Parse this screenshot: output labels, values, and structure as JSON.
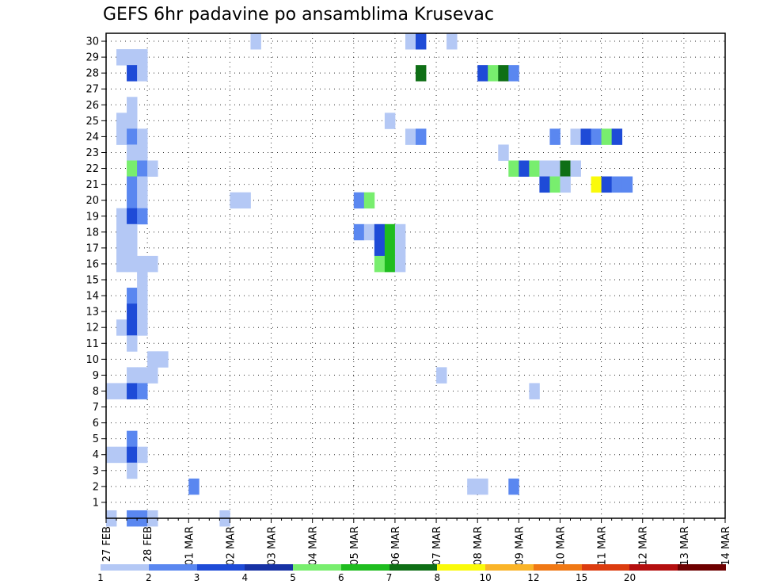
{
  "title": "GEFS 6hr padavine po ansamblima Krusevac",
  "chart_data": {
    "type": "heatmap",
    "title": "GEFS 6hr padavine po ansamblima Krusevac",
    "x_tick_labels": [
      "27 FEB",
      "28 FEB",
      "01 MAR",
      "02 MAR",
      "03 MAR",
      "04 MAR",
      "05 MAR",
      "06 MAR",
      "07 MAR",
      "08 MAR",
      "09 MAR",
      "10 MAR",
      "11 MAR",
      "12 MAR",
      "13 MAR",
      "14 MAR"
    ],
    "y_tick_labels": [
      "1",
      "2",
      "3",
      "4",
      "5",
      "6",
      "7",
      "8",
      "9",
      "10",
      "11",
      "12",
      "13",
      "14",
      "15",
      "16",
      "17",
      "18",
      "19",
      "20",
      "21",
      "22",
      "23",
      "24",
      "25",
      "26",
      "27",
      "28",
      "29",
      "30"
    ],
    "x_steps_per_day": 4,
    "grid": "dotted",
    "legend": {
      "position": "bottom",
      "levels": [
        "1",
        "2",
        "3",
        "4",
        "5",
        "6",
        "7",
        "8",
        "10",
        "12",
        "15",
        "20"
      ],
      "colors": [
        "#b4c8f5",
        "#5a87f0",
        "#1e4bd7",
        "#1732a5",
        "#78ee6e",
        "#1fbd1f",
        "#0f6f16",
        "#fafa0a",
        "#fab428",
        "#f07814",
        "#dc3c0f",
        "#b40f0f",
        "#6e0000"
      ]
    },
    "cells_columns": [
      "member",
      "step",
      "class"
    ],
    "cells": [
      [
        30,
        14,
        1
      ],
      [
        30,
        29,
        1
      ],
      [
        30,
        30,
        3
      ],
      [
        30,
        33,
        1
      ],
      [
        29,
        1,
        1
      ],
      [
        29,
        2,
        1
      ],
      [
        29,
        3,
        1
      ],
      [
        28,
        2,
        3
      ],
      [
        28,
        3,
        1
      ],
      [
        28,
        30,
        7
      ],
      [
        28,
        36,
        3
      ],
      [
        28,
        37,
        5
      ],
      [
        28,
        38,
        7
      ],
      [
        28,
        39,
        2
      ],
      [
        26,
        2,
        1
      ],
      [
        25,
        1,
        1
      ],
      [
        25,
        2,
        1
      ],
      [
        25,
        27,
        1
      ],
      [
        24,
        1,
        1
      ],
      [
        24,
        2,
        2
      ],
      [
        24,
        3,
        1
      ],
      [
        24,
        29,
        1
      ],
      [
        24,
        30,
        2
      ],
      [
        24,
        43,
        2
      ],
      [
        24,
        45,
        1
      ],
      [
        24,
        46,
        3
      ],
      [
        24,
        47,
        2
      ],
      [
        24,
        48,
        5
      ],
      [
        24,
        49,
        3
      ],
      [
        23,
        2,
        1
      ],
      [
        23,
        3,
        1
      ],
      [
        23,
        38,
        1
      ],
      [
        22,
        2,
        5
      ],
      [
        22,
        3,
        2
      ],
      [
        22,
        4,
        1
      ],
      [
        22,
        39,
        5
      ],
      [
        22,
        40,
        3
      ],
      [
        22,
        41,
        5
      ],
      [
        22,
        42,
        1
      ],
      [
        22,
        43,
        1
      ],
      [
        22,
        44,
        7
      ],
      [
        22,
        45,
        1
      ],
      [
        21,
        2,
        2
      ],
      [
        21,
        3,
        1
      ],
      [
        21,
        42,
        3
      ],
      [
        21,
        43,
        5
      ],
      [
        21,
        44,
        1
      ],
      [
        21,
        47,
        8
      ],
      [
        21,
        48,
        3
      ],
      [
        21,
        49,
        2
      ],
      [
        21,
        50,
        2
      ],
      [
        20,
        2,
        2
      ],
      [
        20,
        3,
        1
      ],
      [
        20,
        12,
        1
      ],
      [
        20,
        13,
        1
      ],
      [
        20,
        24,
        2
      ],
      [
        20,
        25,
        5
      ],
      [
        19,
        1,
        1
      ],
      [
        19,
        2,
        3
      ],
      [
        19,
        3,
        2
      ],
      [
        18,
        1,
        1
      ],
      [
        18,
        2,
        1
      ],
      [
        18,
        24,
        2
      ],
      [
        18,
        25,
        1
      ],
      [
        18,
        26,
        3
      ],
      [
        18,
        27,
        6
      ],
      [
        18,
        28,
        1
      ],
      [
        17,
        1,
        1
      ],
      [
        17,
        2,
        1
      ],
      [
        17,
        26,
        3
      ],
      [
        17,
        27,
        6
      ],
      [
        17,
        28,
        1
      ],
      [
        16,
        1,
        1
      ],
      [
        16,
        2,
        1
      ],
      [
        16,
        3,
        1
      ],
      [
        16,
        4,
        1
      ],
      [
        16,
        26,
        5
      ],
      [
        16,
        27,
        6
      ],
      [
        16,
        28,
        1
      ],
      [
        15,
        3,
        1
      ],
      [
        14,
        2,
        2
      ],
      [
        14,
        3,
        1
      ],
      [
        13,
        2,
        3
      ],
      [
        13,
        3,
        1
      ],
      [
        12,
        1,
        1
      ],
      [
        12,
        2,
        3
      ],
      [
        12,
        3,
        1
      ],
      [
        11,
        2,
        1
      ],
      [
        10,
        4,
        1
      ],
      [
        10,
        5,
        1
      ],
      [
        9,
        2,
        1
      ],
      [
        9,
        3,
        1
      ],
      [
        9,
        4,
        1
      ],
      [
        9,
        32,
        1
      ],
      [
        8,
        0,
        1
      ],
      [
        8,
        1,
        1
      ],
      [
        8,
        2,
        3
      ],
      [
        8,
        3,
        2
      ],
      [
        8,
        41,
        1
      ],
      [
        5,
        2,
        2
      ],
      [
        4,
        0,
        1
      ],
      [
        4,
        1,
        1
      ],
      [
        4,
        2,
        3
      ],
      [
        4,
        3,
        1
      ],
      [
        3,
        2,
        1
      ],
      [
        2,
        8,
        2
      ],
      [
        2,
        35,
        1
      ],
      [
        2,
        36,
        1
      ],
      [
        2,
        39,
        2
      ],
      [
        0,
        0,
        1
      ],
      [
        0,
        2,
        2
      ],
      [
        0,
        3,
        2
      ],
      [
        0,
        4,
        1
      ],
      [
        0,
        11,
        1
      ]
    ]
  }
}
